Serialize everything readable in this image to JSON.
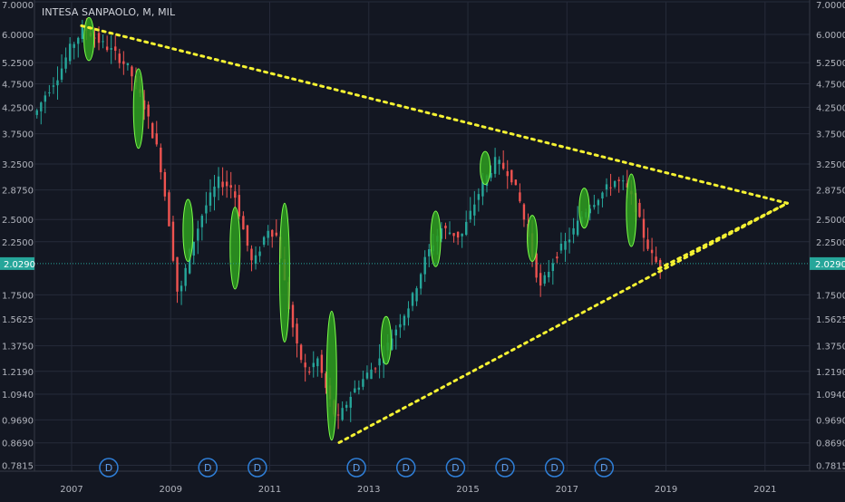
{
  "title": "INTESA SANPAOLO, M, MIL",
  "colors": {
    "background": "#131722",
    "grid": "#262b3a",
    "axis_text": "#b2b5be",
    "up_candle": "#26a69a",
    "down_candle": "#ef5350",
    "trendline": "#f5f232",
    "highlight_fill": "#2e9e1e",
    "highlight_stroke": "#7cff4a",
    "current_price_line": "#26a69a",
    "current_price_badge": "#26a69a",
    "dividend_marker": "#2f7fd8"
  },
  "chart_data": {
    "type": "candlestick",
    "title": "INTESA SANPAOLO, M, MIL",
    "symbol": "INTESA SANPAOLO",
    "interval": "M",
    "exchange": "MIL",
    "scale": "log",
    "grid": true,
    "xlim": [
      2006.25,
      2021.9
    ],
    "ylim": [
      0.76,
      7.0
    ],
    "x_ticks": [
      2007,
      2009,
      2011,
      2013,
      2015,
      2017,
      2019,
      2021
    ],
    "x_tick_labels": [
      "2007",
      "2009",
      "2011",
      "2013",
      "2015",
      "2017",
      "2019",
      "2021"
    ],
    "y_ticks": [
      7.0,
      6.0,
      5.25,
      4.75,
      4.25,
      3.75,
      3.25,
      2.875,
      2.5,
      2.25,
      1.75,
      1.5625,
      1.375,
      1.219,
      1.094,
      0.969,
      0.869,
      0.7815
    ],
    "y_tick_labels": [
      "7.0000",
      "6.0000",
      "5.2500",
      "4.7500",
      "4.2500",
      "3.7500",
      "3.2500",
      "2.8750",
      "2.5000",
      "2.2500",
      "1.7500",
      "1.5625",
      "1.3750",
      "1.2190",
      "1.0940",
      "0.9690",
      "0.8690",
      "0.7815"
    ],
    "current_price": 2.029,
    "current_price_label": "2.0290",
    "price_path": [
      [
        2006.3,
        4.1
      ],
      [
        2006.5,
        4.5
      ],
      [
        2006.8,
        5.0
      ],
      [
        2007.0,
        5.6
      ],
      [
        2007.3,
        6.2
      ],
      [
        2007.6,
        5.8
      ],
      [
        2007.9,
        5.5
      ],
      [
        2008.2,
        5.1
      ],
      [
        2008.5,
        4.3
      ],
      [
        2008.8,
        3.4
      ],
      [
        2009.0,
        2.5
      ],
      [
        2009.2,
        1.7
      ],
      [
        2009.4,
        2.1
      ],
      [
        2009.7,
        2.6
      ],
      [
        2010.0,
        3.0
      ],
      [
        2010.3,
        2.9
      ],
      [
        2010.5,
        2.4
      ],
      [
        2010.7,
        2.0
      ],
      [
        2011.0,
        2.4
      ],
      [
        2011.2,
        2.3
      ],
      [
        2011.4,
        1.7
      ],
      [
        2011.6,
        1.35
      ],
      [
        2011.8,
        1.2
      ],
      [
        2012.0,
        1.3
      ],
      [
        2012.2,
        1.1
      ],
      [
        2012.4,
        0.96
      ],
      [
        2012.7,
        1.1
      ],
      [
        2013.0,
        1.2
      ],
      [
        2013.3,
        1.3
      ],
      [
        2013.6,
        1.5
      ],
      [
        2013.9,
        1.7
      ],
      [
        2014.2,
        2.1
      ],
      [
        2014.5,
        2.4
      ],
      [
        2014.9,
        2.3
      ],
      [
        2015.3,
        2.9
      ],
      [
        2015.6,
        3.3
      ],
      [
        2015.9,
        3.1
      ],
      [
        2016.1,
        2.7
      ],
      [
        2016.3,
        2.2
      ],
      [
        2016.5,
        1.8
      ],
      [
        2016.8,
        2.1
      ],
      [
        2017.1,
        2.3
      ],
      [
        2017.4,
        2.6
      ],
      [
        2017.7,
        2.8
      ],
      [
        2018.0,
        3.0
      ],
      [
        2018.2,
        2.95
      ],
      [
        2018.4,
        2.7
      ],
      [
        2018.6,
        2.3
      ],
      [
        2018.8,
        2.05
      ],
      [
        2018.9,
        2.029
      ]
    ],
    "highlight_zones": [
      {
        "x": 2007.35,
        "low": 5.3,
        "high": 6.5
      },
      {
        "x": 2008.35,
        "low": 3.5,
        "high": 5.1
      },
      {
        "x": 2009.35,
        "low": 2.05,
        "high": 2.75
      },
      {
        "x": 2010.3,
        "low": 1.8,
        "high": 2.65
      },
      {
        "x": 2011.3,
        "low": 1.4,
        "high": 2.7
      },
      {
        "x": 2012.25,
        "low": 0.88,
        "high": 1.62
      },
      {
        "x": 2013.35,
        "low": 1.26,
        "high": 1.58
      },
      {
        "x": 2014.35,
        "low": 2.0,
        "high": 2.6
      },
      {
        "x": 2015.35,
        "low": 2.95,
        "high": 3.45
      },
      {
        "x": 2016.3,
        "low": 2.05,
        "high": 2.55
      },
      {
        "x": 2017.35,
        "low": 2.4,
        "high": 2.9
      },
      {
        "x": 2018.3,
        "low": 2.2,
        "high": 3.1
      }
    ],
    "trendlines": [
      {
        "from": [
          2007.2,
          6.25
        ],
        "to": [
          2021.45,
          2.7
        ]
      },
      {
        "from": [
          2012.4,
          0.87
        ],
        "to": [
          2021.45,
          2.7
        ]
      },
      {
        "from": [
          2018.85,
          1.98
        ],
        "to": [
          2021.45,
          2.7
        ]
      }
    ],
    "dividend_markers": {
      "x": [
        2007.75,
        2009.75,
        2010.75,
        2012.75,
        2013.75,
        2014.75,
        2015.75,
        2016.75,
        2017.75
      ],
      "label": "D"
    }
  }
}
